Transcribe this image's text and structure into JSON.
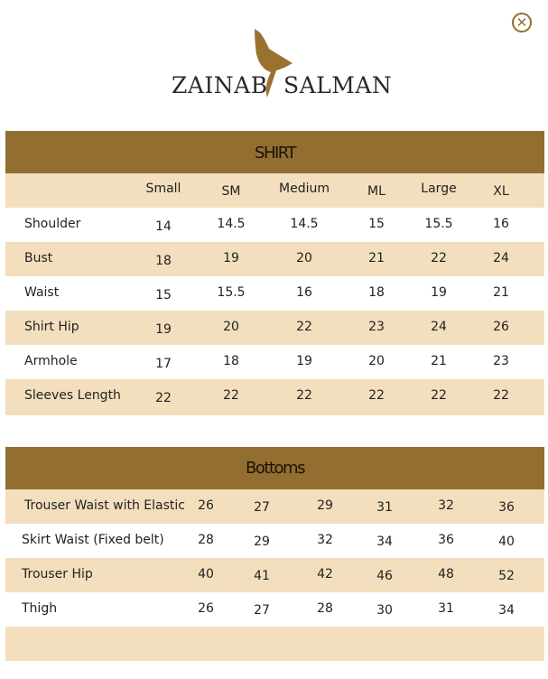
{
  "brand": {
    "left": "ZAINAB",
    "right": "SALMAN",
    "colors": {
      "brown": "#926e31",
      "beige": "#f3dfbd"
    }
  },
  "close_icon": "close-circle-icon",
  "shirt": {
    "title": "SHIRT",
    "columns": [
      "Small",
      "SM",
      "Medium",
      "ML",
      "Large",
      "XL"
    ],
    "rows": [
      {
        "label": "Shoulder",
        "values": [
          "14",
          "14.5",
          "14.5",
          "15",
          "15.5",
          "16"
        ]
      },
      {
        "label": "Bust",
        "values": [
          "18",
          "19",
          "20",
          "21",
          "22",
          "24"
        ]
      },
      {
        "label": "Waist",
        "values": [
          "15",
          "15.5",
          "16",
          "18",
          "19",
          "21"
        ]
      },
      {
        "label": "Shirt Hip",
        "values": [
          "19",
          "20",
          "22",
          "23",
          "24",
          "26"
        ]
      },
      {
        "label": "Armhole",
        "values": [
          "17",
          "18",
          "19",
          "20",
          "21",
          "23"
        ]
      },
      {
        "label": "Sleeves Length",
        "values": [
          "22",
          "22",
          "22",
          "22",
          "22",
          "22"
        ]
      }
    ]
  },
  "bottoms": {
    "title": "Bottoms",
    "rows": [
      {
        "label": "Trouser Waist with Elastic",
        "values": [
          "26",
          "27",
          "29",
          "31",
          "32",
          "36"
        ]
      },
      {
        "label": "Skirt Waist (Fixed belt)",
        "values": [
          "28",
          "29",
          "32",
          "34",
          "36",
          "40"
        ]
      },
      {
        "label": "Trouser Hip",
        "values": [
          "40",
          "41",
          "42",
          "46",
          "48",
          "52"
        ]
      },
      {
        "label": "Thigh",
        "values": [
          "26",
          "27",
          "28",
          "30",
          "31",
          "34"
        ]
      }
    ]
  }
}
